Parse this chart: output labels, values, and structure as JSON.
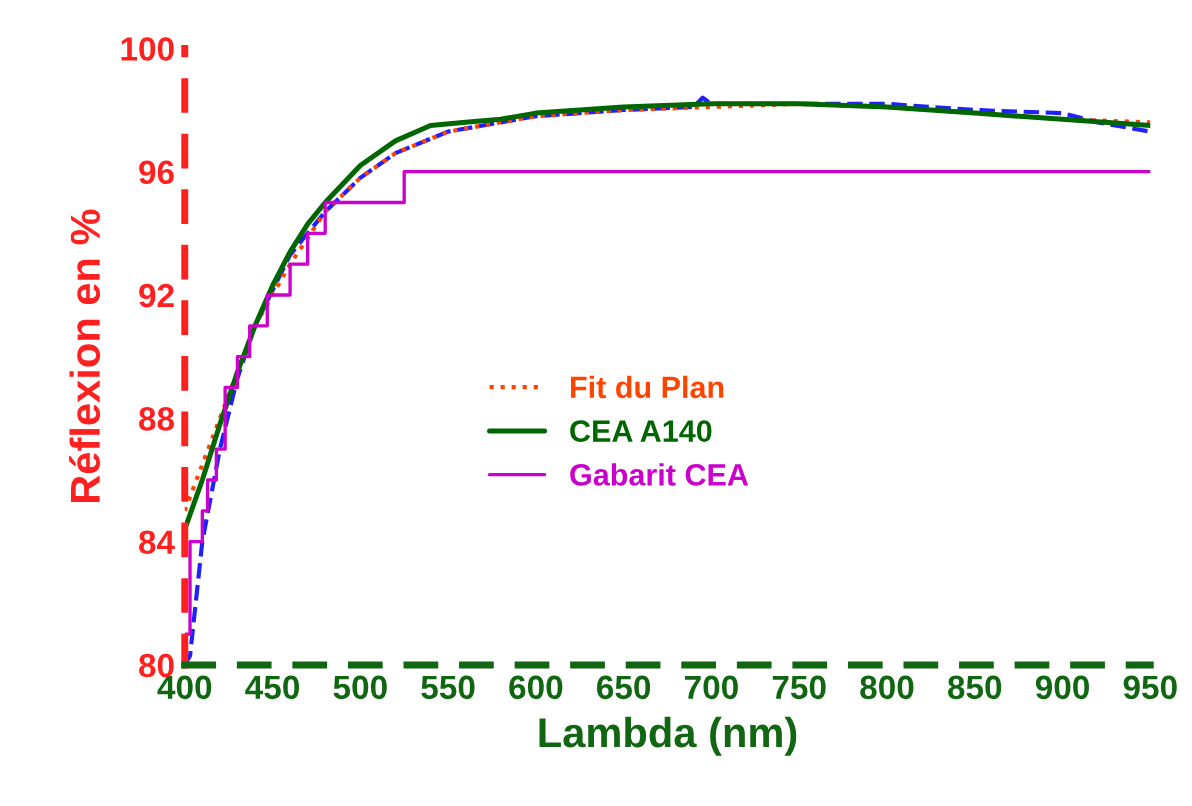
{
  "chart_data": {
    "type": "line",
    "xlabel": "Lambda (nm)",
    "ylabel": "Réflexion en %",
    "xlim": [
      400,
      950
    ],
    "xticks": [
      400,
      450,
      500,
      550,
      600,
      650,
      700,
      750,
      800,
      850,
      900,
      950
    ],
    "ylim": [
      80,
      100
    ],
    "yticks": [
      80,
      84,
      88,
      92,
      96,
      100
    ],
    "grid": false,
    "legend": "center",
    "series": [
      {
        "color": "#2020ff",
        "line_style": "dashed",
        "x": [
          400,
          403,
          410,
          420,
          430,
          440,
          460,
          480,
          500,
          520,
          550,
          600,
          650,
          690,
          695,
          700,
          750,
          800,
          850,
          900,
          920,
          950
        ],
        "values": [
          80,
          80.3,
          84,
          87,
          89.3,
          91,
          93.3,
          94.7,
          95.8,
          96.6,
          97.3,
          97.8,
          98,
          98.1,
          98.4,
          98.2,
          98.2,
          98.2,
          98,
          97.9,
          97.6,
          97.3
        ]
      },
      {
        "name": "Fit du Plan",
        "color": "#ff4400",
        "line_style": "dotted",
        "x": [
          400,
          420,
          440,
          460,
          480,
          500,
          520,
          550,
          600,
          650,
          700,
          750,
          800,
          850,
          900,
          950
        ],
        "values": [
          85,
          88,
          91,
          93,
          94.7,
          95.8,
          96.6,
          97.3,
          97.8,
          98,
          98.1,
          98.2,
          98.1,
          97.9,
          97.7,
          97.6
        ]
      },
      {
        "name": "CEA A140",
        "color": "#006600",
        "line_style": "solid",
        "x": [
          400,
          410,
          420,
          430,
          440,
          450,
          460,
          470,
          480,
          500,
          520,
          540,
          560,
          580,
          600,
          650,
          700,
          750,
          800,
          850,
          900,
          950
        ],
        "values": [
          84.4,
          86,
          87.8,
          89.5,
          91,
          92.3,
          93.4,
          94.3,
          95,
          96.2,
          97,
          97.5,
          97.6,
          97.7,
          97.9,
          98.1,
          98.2,
          98.2,
          98.1,
          97.9,
          97.7,
          97.5
        ]
      },
      {
        "name": "Gabarit CEA",
        "type": "step",
        "color": "#cc00cc",
        "line_style": "solid",
        "x": [
          400,
          403,
          410,
          413,
          418,
          423,
          430,
          437,
          447,
          460,
          470,
          480,
          525,
          950
        ],
        "values": [
          81,
          84,
          85,
          86,
          87,
          89,
          90,
          91,
          92,
          93,
          94,
          95,
          96,
          96
        ]
      }
    ]
  }
}
